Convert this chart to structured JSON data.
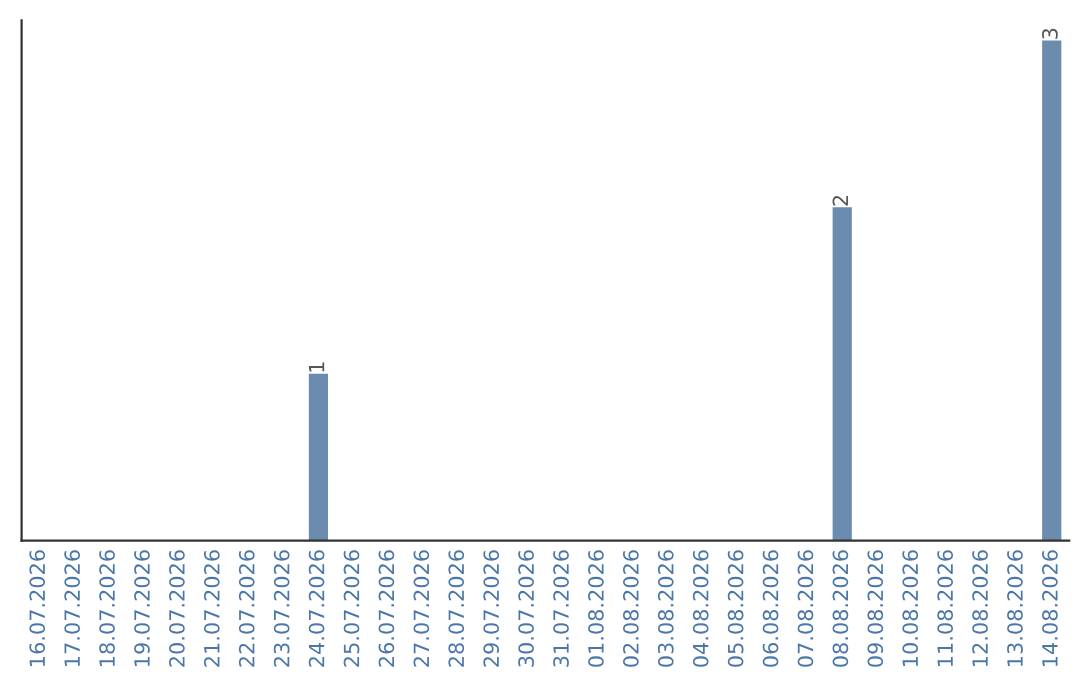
{
  "chart_data": {
    "type": "bar",
    "categories": [
      "16.07.2026",
      "17.07.2026",
      "18.07.2026",
      "19.07.2026",
      "20.07.2026",
      "21.07.2026",
      "22.07.2026",
      "23.07.2026",
      "24.07.2026",
      "25.07.2026",
      "26.07.2026",
      "27.07.2026",
      "28.07.2026",
      "29.07.2026",
      "30.07.2026",
      "31.07.2026",
      "01.08.2026",
      "02.08.2026",
      "03.08.2026",
      "04.08.2026",
      "05.08.2026",
      "06.08.2026",
      "07.08.2026",
      "08.08.2026",
      "09.08.2026",
      "10.08.2026",
      "11.08.2026",
      "12.08.2026",
      "13.08.2026",
      "14.08.2026"
    ],
    "values": [
      0,
      0,
      0,
      0,
      0,
      0,
      0,
      0,
      1,
      0,
      0,
      0,
      0,
      0,
      0,
      0,
      0,
      0,
      0,
      0,
      0,
      0,
      0,
      2,
      0,
      0,
      0,
      0,
      0,
      3
    ],
    "value_labels": [
      null,
      null,
      null,
      null,
      null,
      null,
      null,
      null,
      "1",
      null,
      null,
      null,
      null,
      null,
      null,
      null,
      null,
      null,
      null,
      null,
      null,
      null,
      null,
      "2",
      null,
      null,
      null,
      null,
      null,
      "3"
    ],
    "color": "#6b8cae",
    "tick_labels": "x",
    "grid": false,
    "legend": false
  }
}
